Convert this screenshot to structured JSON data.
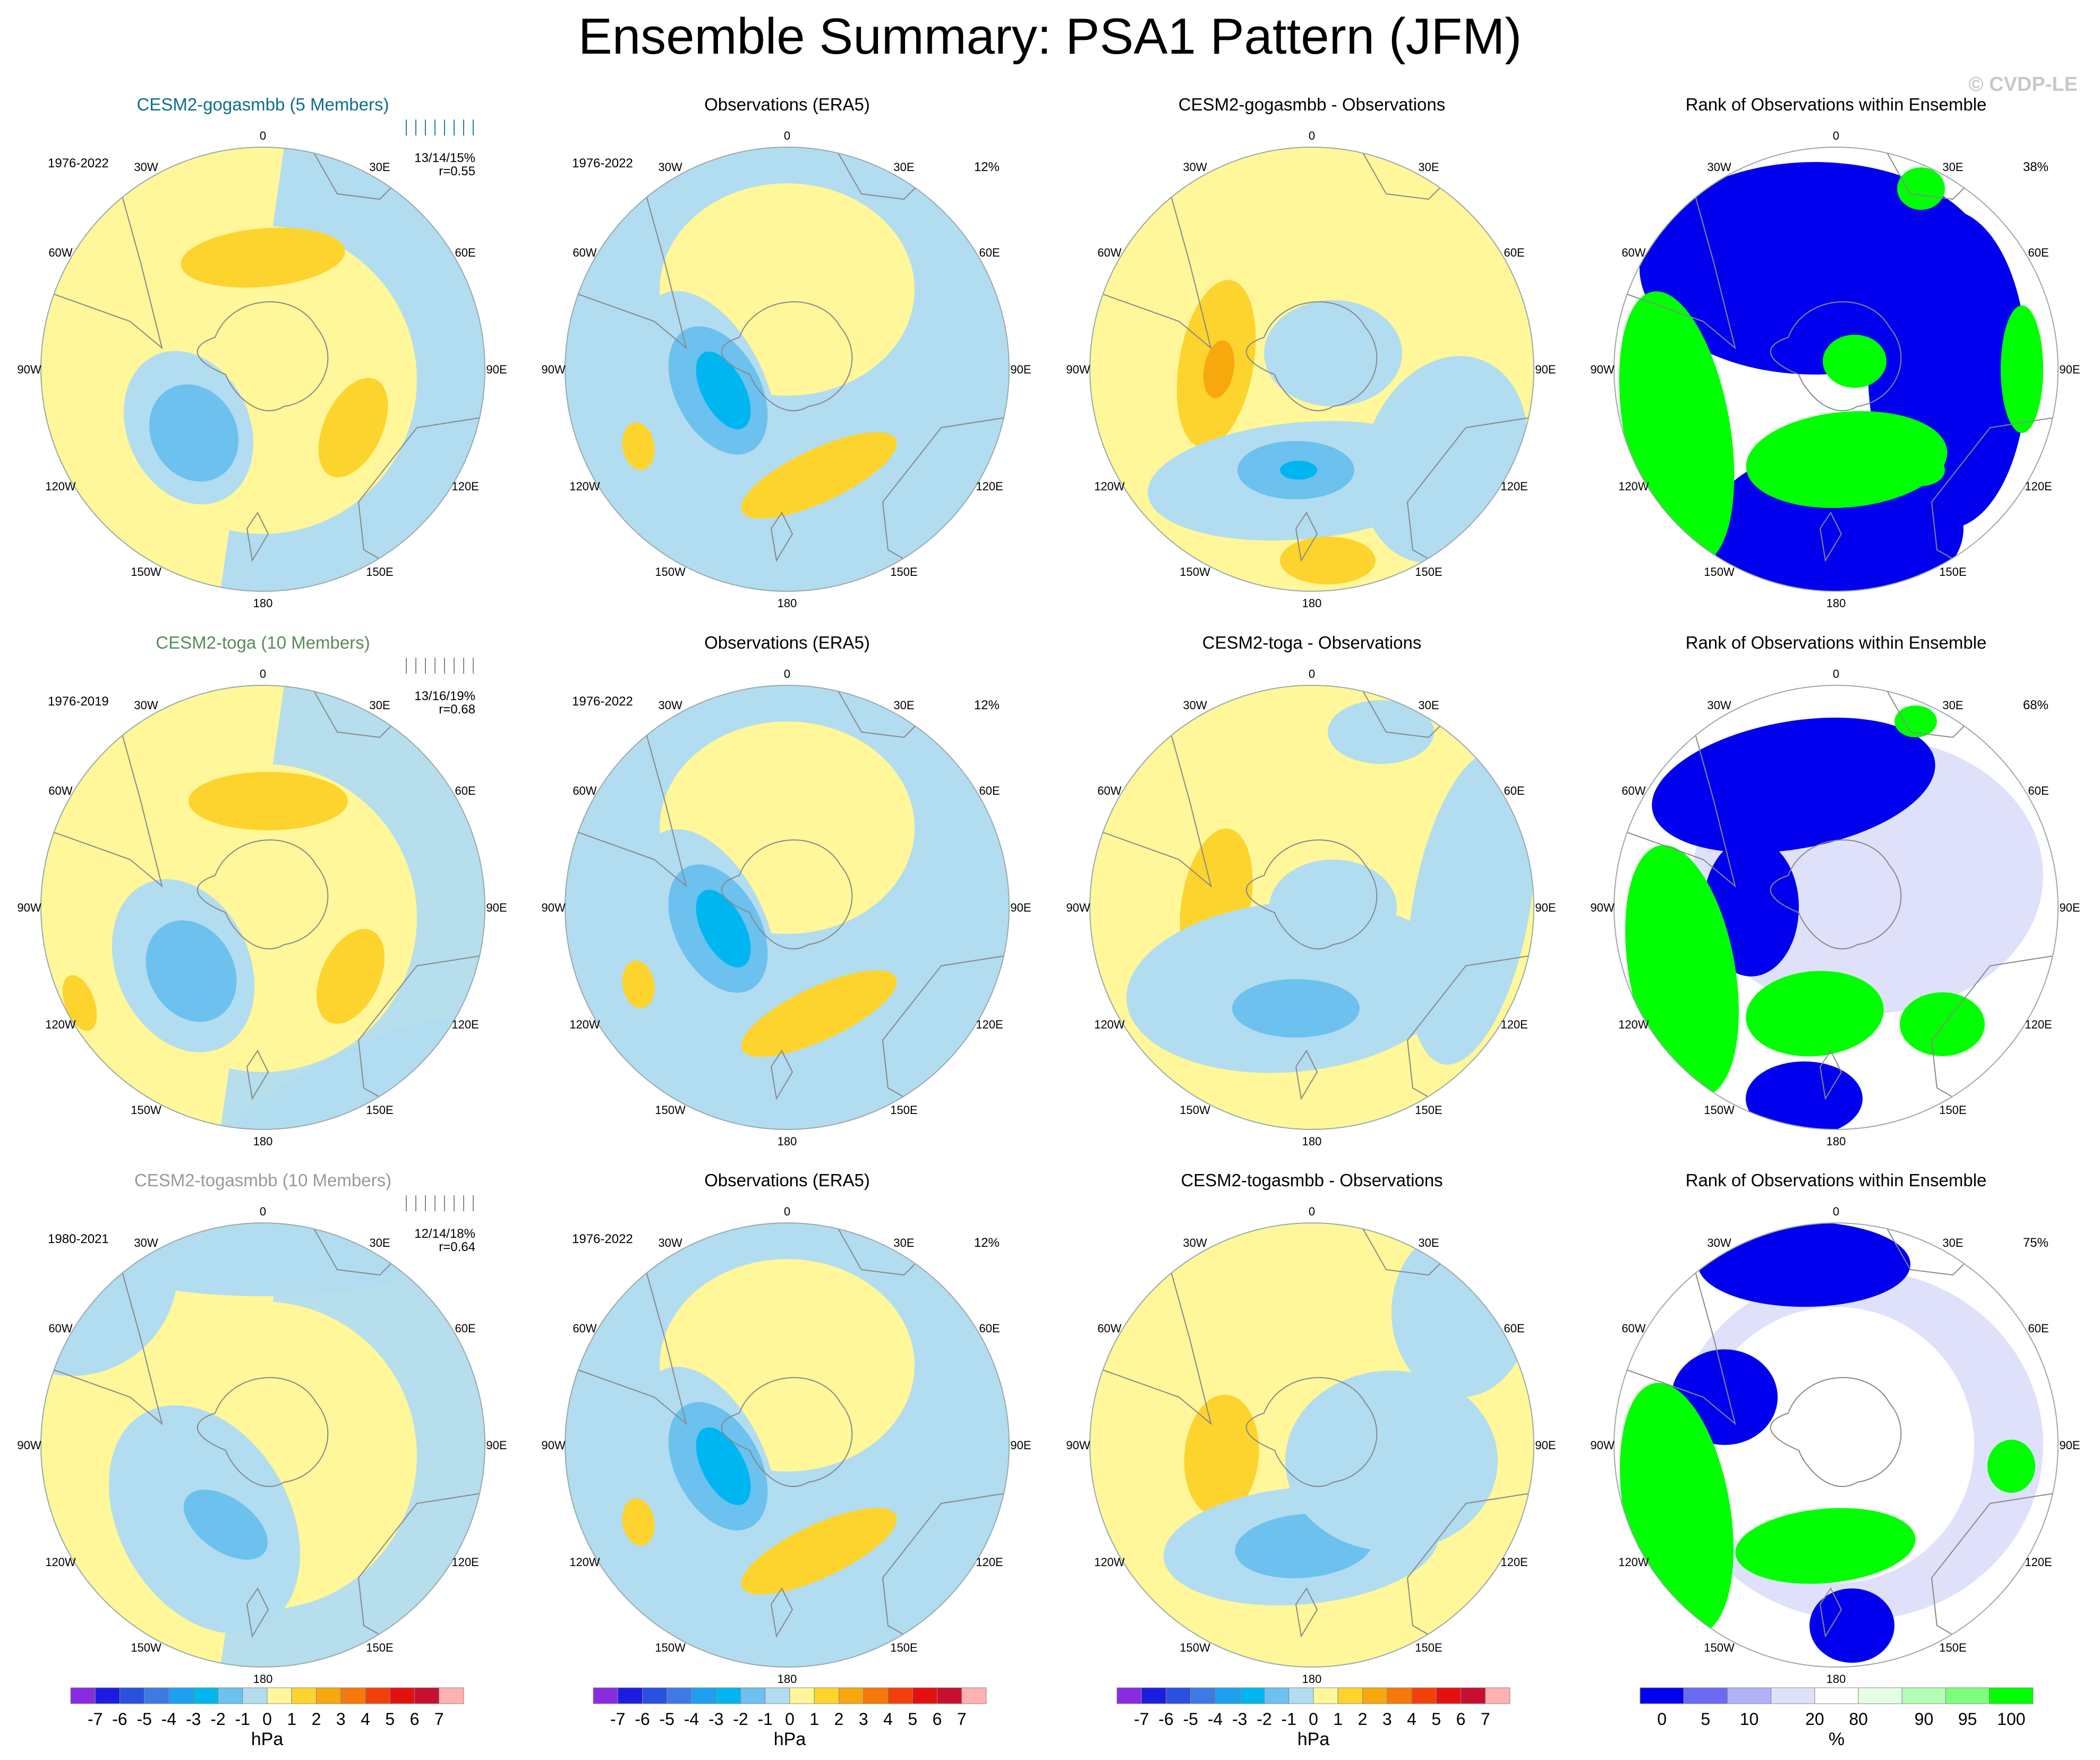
{
  "title": "Ensemble Summary: PSA1 Pattern (JFM)",
  "copyright": "© CVDP-LE",
  "colors": {
    "light_blue": "#b2dcf0",
    "mid_blue": "#6cc1ee",
    "deep_blue": "#00b6f0",
    "pale_yellow": "#fff799",
    "gold": "#fdd42d",
    "orange": "#f7a80d",
    "model_title_1": "#0e6e8a",
    "model_title_2": "#5a8a5a",
    "model_title_3": "#999999",
    "rank_blue": "#0000ee",
    "rank_lavender": "#dfe1fa",
    "rank_green": "#00ff00",
    "rank_pale_green": "#e5ffe5"
  },
  "longitude_labels": [
    "0",
    "30E",
    "60E",
    "90E",
    "120E",
    "150E",
    "180",
    "150W",
    "120W",
    "90W",
    "60W",
    "30W"
  ],
  "rows": [
    {
      "model": {
        "title": "CESM2-gogasmbb (5 Members)",
        "years": "1976-2022",
        "stats": "13/14/15%",
        "r": "r=0.55"
      },
      "obs": {
        "title": "Observations (ERA5)",
        "years": "1976-2022",
        "pct": "12%"
      },
      "diff": {
        "title": "CESM2-gogasmbb - Observations"
      },
      "rank": {
        "title": "Rank of Observations within Ensemble",
        "pct": "38%"
      }
    },
    {
      "model": {
        "title": "CESM2-toga (10 Members)",
        "years": "1976-2019",
        "stats": "13/16/19%",
        "r": "r=0.68"
      },
      "obs": {
        "title": "Observations (ERA5)",
        "years": "1976-2022",
        "pct": "12%"
      },
      "diff": {
        "title": "CESM2-toga - Observations"
      },
      "rank": {
        "title": "Rank of Observations within Ensemble",
        "pct": "68%"
      }
    },
    {
      "model": {
        "title": "CESM2-togasmbb (10 Members)",
        "years": "1980-2021",
        "stats": "12/14/18%",
        "r": "r=0.64"
      },
      "obs": {
        "title": "Observations (ERA5)",
        "years": "1976-2022",
        "pct": "12%"
      },
      "diff": {
        "title": "CESM2-togasmbb - Observations"
      },
      "rank": {
        "title": "Rank of Observations within Ensemble",
        "pct": "75%"
      }
    }
  ],
  "colorbars": {
    "hpa": {
      "labels": [
        "-7",
        "-6",
        "-5",
        "-4",
        "-3",
        "-2",
        "-1",
        "0",
        "1",
        "2",
        "3",
        "4",
        "5",
        "6",
        "7"
      ],
      "unit": "hPa",
      "colors": [
        "#8a2be2",
        "#1c1ce0",
        "#2a50e0",
        "#3d7ae6",
        "#1e9ff0",
        "#00b6f0",
        "#6cc1ee",
        "#b2dcf0",
        "#fff799",
        "#fdd42d",
        "#f7a80d",
        "#f57a0a",
        "#f2400a",
        "#e41010",
        "#c8102e",
        "#ffb0b0"
      ]
    },
    "rank": {
      "labels": [
        "0",
        "5",
        "10",
        "20",
        "80",
        "90",
        "95",
        "100"
      ],
      "unit": "%",
      "colors": [
        "#0000ee",
        "#6a6af5",
        "#b0b2f7",
        "#dfe1fa",
        "#ffffff",
        "#e5ffe5",
        "#b3ffb3",
        "#7dff7d",
        "#00ff00"
      ]
    }
  },
  "chart_data": [
    {
      "type": "heatmap",
      "title": "Ensemble Summary: PSA1 Pattern (JFM)",
      "description_of_grid": "3 rows (models) x 4 columns (model, observations, difference, rank) polar stereographic maps of the Southern Hemisphere",
      "colorbar_levels_hpa": [
        -7,
        -6,
        -5,
        -4,
        -3,
        -2,
        -1,
        0,
        1,
        2,
        3,
        4,
        5,
        6,
        7
      ],
      "colorbar_levels_rank_pct": [
        0,
        5,
        10,
        20,
        80,
        90,
        95,
        100
      ],
      "panels": [
        {
          "row": 1,
          "col": "model",
          "title": "CESM2-gogasmbb (5 Members)",
          "period": "1976-2022",
          "pct_variance": "13/14/15%",
          "pattern_correlation": 0.55
        },
        {
          "row": 1,
          "col": "obs",
          "title": "Observations (ERA5)",
          "period": "1976-2022",
          "pct_variance": "12%"
        },
        {
          "row": 1,
          "col": "diff",
          "title": "CESM2-gogasmbb - Observations"
        },
        {
          "row": 1,
          "col": "rank",
          "title": "Rank of Observations within Ensemble",
          "pct": "38%"
        },
        {
          "row": 2,
          "col": "model",
          "title": "CESM2-toga (10 Members)",
          "period": "1976-2019",
          "pct_variance": "13/16/19%",
          "pattern_correlation": 0.68
        },
        {
          "row": 2,
          "col": "obs",
          "title": "Observations (ERA5)",
          "period": "1976-2022",
          "pct_variance": "12%"
        },
        {
          "row": 2,
          "col": "diff",
          "title": "CESM2-toga - Observations"
        },
        {
          "row": 2,
          "col": "rank",
          "title": "Rank of Observations within Ensemble",
          "pct": "68%"
        },
        {
          "row": 3,
          "col": "model",
          "title": "CESM2-togasmbb (10 Members)",
          "period": "1980-2021",
          "pct_variance": "12/14/18%",
          "pattern_correlation": 0.64
        },
        {
          "row": 3,
          "col": "obs",
          "title": "Observations (ERA5)",
          "period": "1976-2022",
          "pct_variance": "12%"
        },
        {
          "row": 3,
          "col": "diff",
          "title": "CESM2-togasmbb - Observations"
        },
        {
          "row": 3,
          "col": "rank",
          "title": "Rank of Observations within Ensemble",
          "pct": "75%"
        }
      ]
    }
  ]
}
